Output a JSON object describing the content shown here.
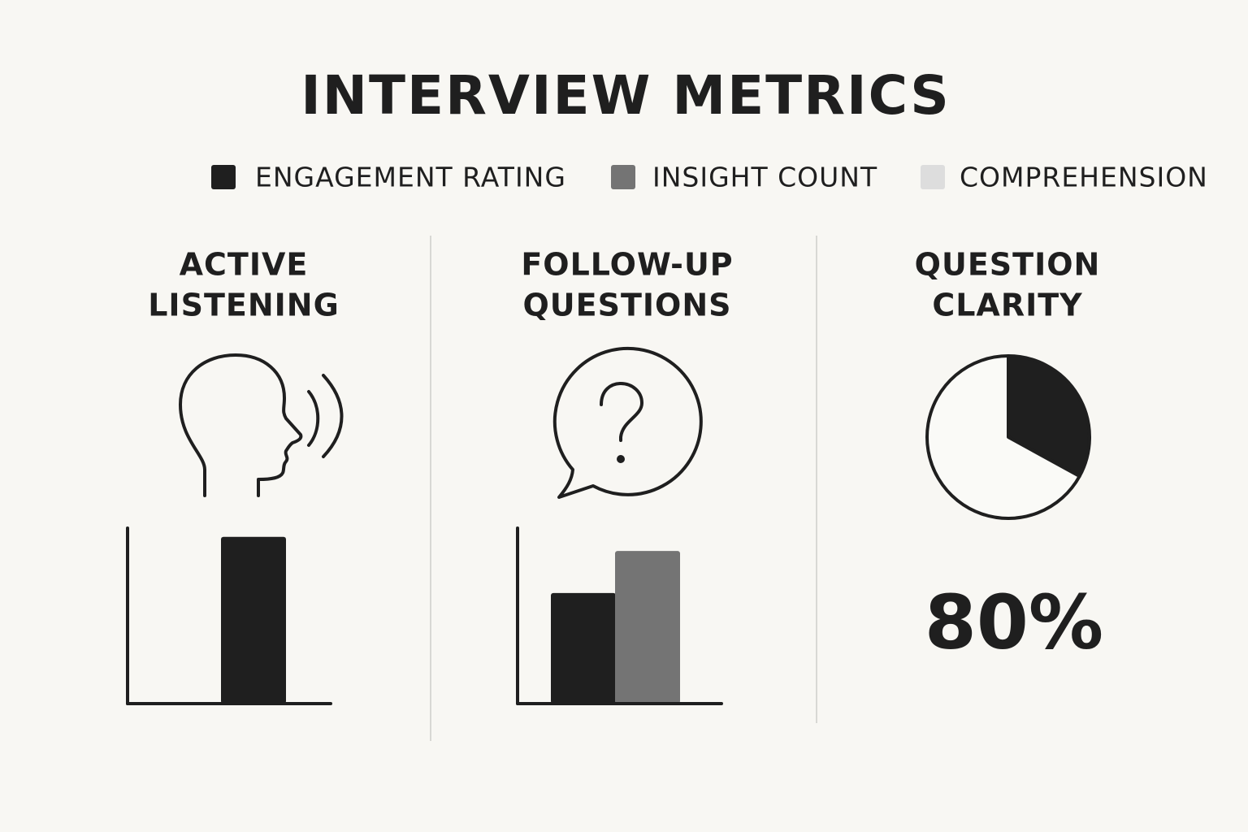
{
  "title": "INTERVIEW METRICS",
  "legend": [
    {
      "name": "ENGAGEMENT RATING",
      "color": "#1f1f1f"
    },
    {
      "name": "INSIGHT COUNT",
      "color": "#747474"
    },
    {
      "name": "COMPREHENSION",
      "color": "#dddddd"
    }
  ],
  "chart_data": [
    {
      "type": "bar",
      "title": [
        "ACTIVE",
        "LISTENING"
      ],
      "categories": [
        null
      ],
      "ylim": [
        0,
        100
      ],
      "series": [
        {
          "color": "#1f1f1f",
          "values": [
            95
          ]
        }
      ]
    },
    {
      "type": "bar",
      "title": [
        "FOLLOW-UP",
        "QUESTIONS"
      ],
      "categories": [
        null
      ],
      "ylim": [
        0,
        100
      ],
      "series": [
        {
          "color": "#1f1f1f",
          "values": [
            63
          ]
        },
        {
          "color": "#747474",
          "values": [
            87
          ]
        }
      ]
    },
    {
      "type": "pie",
      "title": [
        "QUESTION",
        "CLARITY"
      ],
      "categories": [
        null,
        null
      ],
      "values": [
        33,
        67
      ],
      "colors": [
        "#1f1f1f",
        "#fafaf7"
      ],
      "kpi": {
        "value": 80,
        "label": "80%"
      }
    }
  ]
}
